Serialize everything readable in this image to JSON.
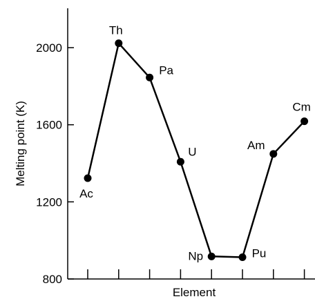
{
  "chart_data": {
    "type": "line",
    "xlabel": "Element",
    "ylabel": "Melting point (K)",
    "ylim": [
      800,
      2200
    ],
    "yticks": [
      800,
      1200,
      1600,
      2000
    ],
    "grid": false,
    "legend": "none",
    "series": [
      {
        "points": [
          {
            "label": "Ac",
            "value": 1323
          },
          {
            "label": "Th",
            "value": 2023
          },
          {
            "label": "Pa",
            "value": 1845
          },
          {
            "label": "U",
            "value": 1408
          },
          {
            "label": "Np",
            "value": 917
          },
          {
            "label": "Pu",
            "value": 913
          },
          {
            "label": "Am",
            "value": 1449
          },
          {
            "label": "Cm",
            "value": 1618
          }
        ]
      }
    ]
  }
}
